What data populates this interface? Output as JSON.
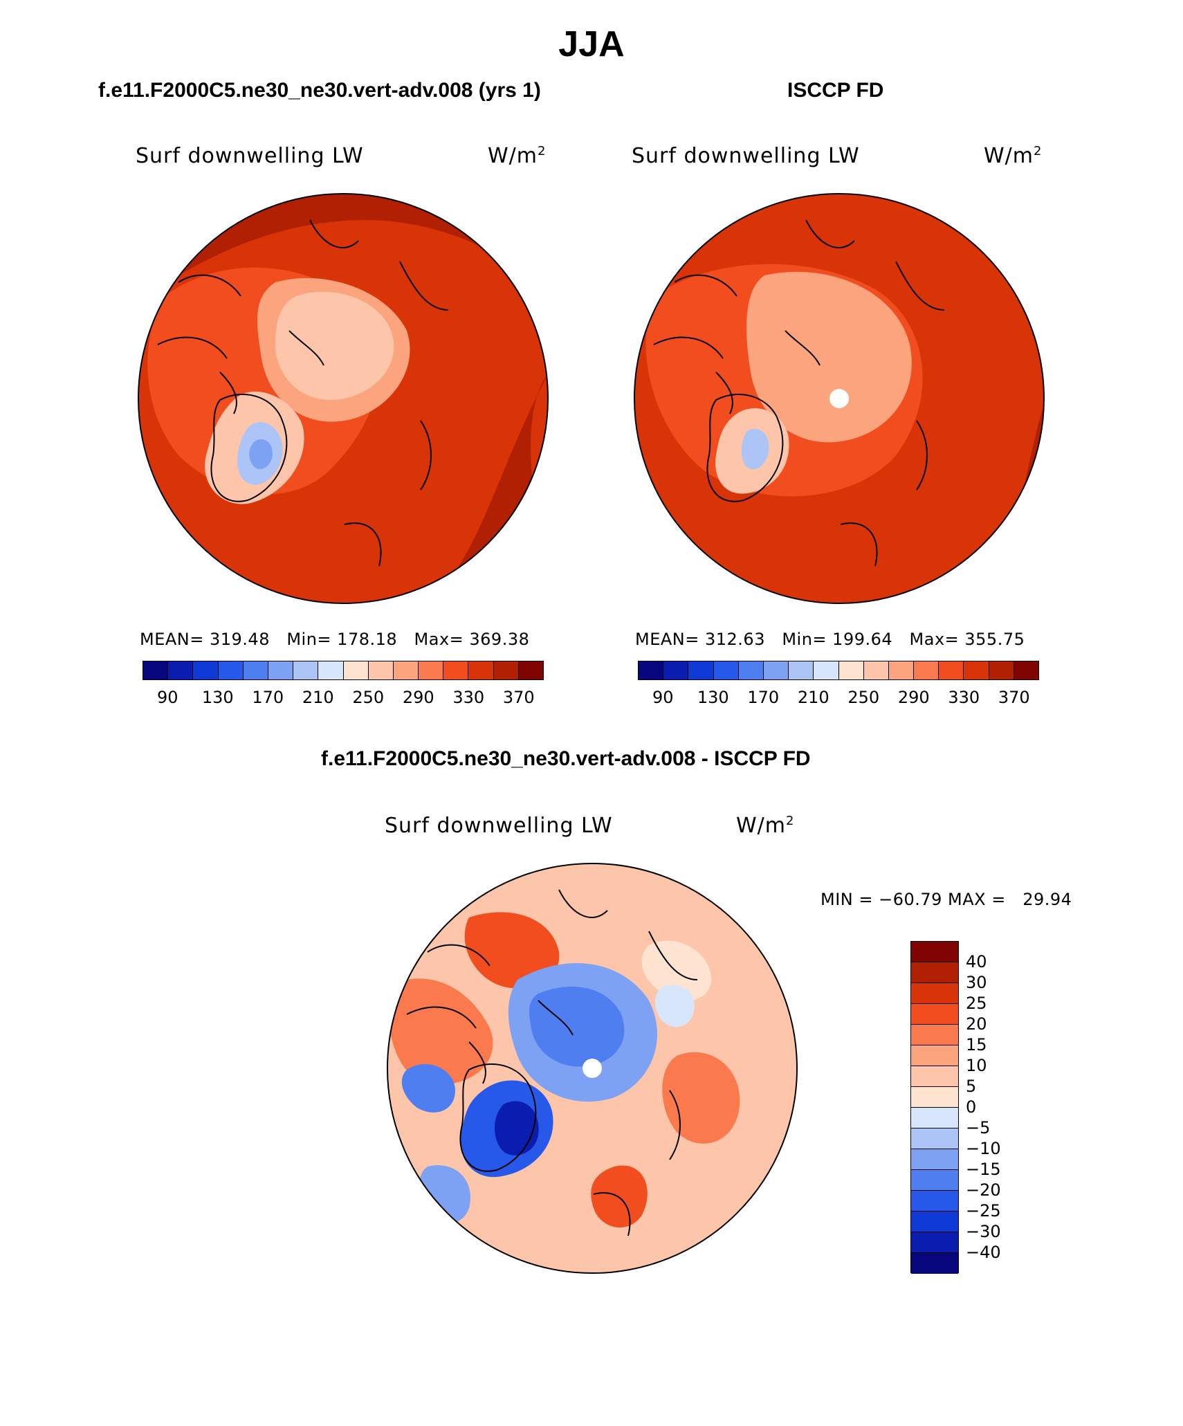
{
  "page": {
    "title": "JJA"
  },
  "panels": {
    "left": {
      "title": "f.e11.F2000C5.ne30_ne30.vert-adv.008 (yrs 1)",
      "variable": "Surf downwelling LW",
      "unit_base": "W/m",
      "unit_exp": "2",
      "stats": "MEAN= 319.48   Min= 178.18   Max= 369.38"
    },
    "right": {
      "title": "ISCCP FD",
      "variable": "Surf downwelling LW",
      "unit_base": "W/m",
      "unit_exp": "2",
      "stats": "MEAN= 312.63   Min= 199.64   Max= 355.75"
    },
    "diff": {
      "title": "f.e11.F2000C5.ne30_ne30.vert-adv.008 - ISCCP FD",
      "variable": "Surf downwelling LW",
      "unit_base": "W/m",
      "unit_exp": "2",
      "stats": "MIN = −60.79 MAX =   29.94"
    }
  },
  "colorbars": {
    "absolute": {
      "tick_labels": [
        "90",
        "130",
        "170",
        "210",
        "250",
        "290",
        "330",
        "370"
      ],
      "colors": [
        "#08067d",
        "#0b1dae",
        "#0f3ad6",
        "#2659ea",
        "#4e7ef0",
        "#7ea2f3",
        "#adc5f6",
        "#d7e6fa",
        "#fde3d0",
        "#fdc6aa",
        "#fca47e",
        "#fa7a4d",
        "#f14d1f",
        "#d83407",
        "#b22004",
        "#800502"
      ]
    },
    "difference": {
      "labels": [
        "40",
        "30",
        "25",
        "20",
        "15",
        "10",
        "5",
        "0",
        "−5",
        "−10",
        "−15",
        "−20",
        "−25",
        "−30",
        "−40"
      ],
      "colors": [
        "#800502",
        "#b22004",
        "#d83407",
        "#f14d1f",
        "#fa7a4d",
        "#fca47e",
        "#fdc6aa",
        "#fde3d0",
        "#d7e6fa",
        "#adc5f6",
        "#7ea2f3",
        "#4e7ef0",
        "#2659ea",
        "#0f3ad6",
        "#0b1dae",
        "#08067d"
      ]
    }
  }
}
